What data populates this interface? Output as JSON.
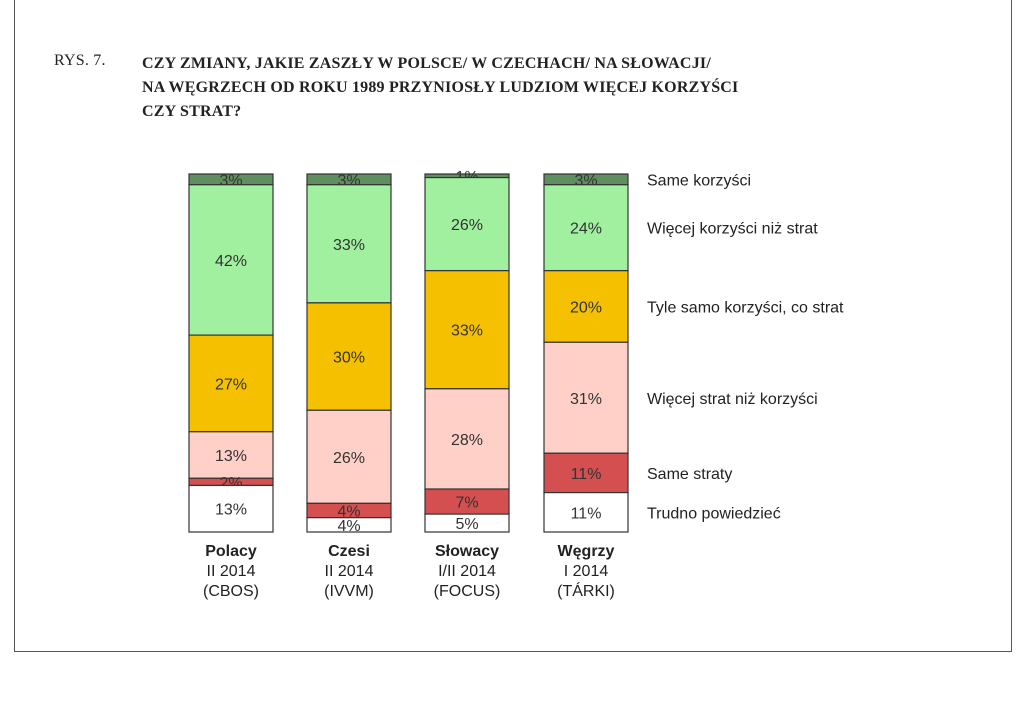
{
  "figure": {
    "label": "RYS. 7.",
    "title_lines": [
      "CZY ZMIANY, JAKIE ZASZŁY W POLSCE/ W CZECHACH/ NA SŁOWACJI/",
      "NA WĘGRZECH OD ROKU 1989 PRZYNIOSŁY LUDZIOM WIĘCEJ KORZYŚCI",
      "CZY STRAT?"
    ]
  },
  "chart_data": {
    "type": "bar",
    "stacked": true,
    "normalized_percent": true,
    "categories": [
      {
        "name": "Polacy",
        "period": "II 2014",
        "source": "(CBOS)"
      },
      {
        "name": "Czesi",
        "period": "II 2014",
        "source": "(IVVM)"
      },
      {
        "name": "Słowacy",
        "period": "I/II 2014",
        "source": "(FOCUS)"
      },
      {
        "name": "Węgrzy",
        "period": "I 2014",
        "source": "(TÁRKI)"
      }
    ],
    "series": [
      {
        "name": "Same korzyści",
        "color": "#5f8f5f",
        "values": [
          3,
          3,
          1,
          3
        ],
        "labels": [
          "3%",
          "3%",
          "1%",
          "3%"
        ]
      },
      {
        "name": "Więcej korzyści niż strat",
        "color": "#a0f0a0",
        "values": [
          42,
          33,
          26,
          24
        ],
        "labels": [
          "42%",
          "33%",
          "26%",
          "24%"
        ]
      },
      {
        "name": "Tyle samo korzyści, co strat",
        "color": "#f5c000",
        "values": [
          27,
          30,
          33,
          20
        ],
        "labels": [
          "27%",
          "30%",
          "33%",
          "20%"
        ]
      },
      {
        "name": "Więcej strat niż korzyści",
        "color": "#ffd0c8",
        "values": [
          13,
          26,
          28,
          31
        ],
        "labels": [
          "13%",
          "26%",
          "28%",
          "31%"
        ]
      },
      {
        "name": "Same straty",
        "color": "#d44f4f",
        "values": [
          2,
          4,
          7,
          11
        ],
        "labels": [
          "2%",
          "4%",
          "7%",
          "11%"
        ]
      },
      {
        "name": "Trudno powiedzieć",
        "color": "#ffffff",
        "values": [
          13,
          4,
          5,
          11
        ],
        "labels": [
          "13%",
          "4%",
          "5%",
          "11%"
        ]
      }
    ],
    "ylim": [
      0,
      100
    ],
    "legend_position": "right",
    "grid": false
  }
}
